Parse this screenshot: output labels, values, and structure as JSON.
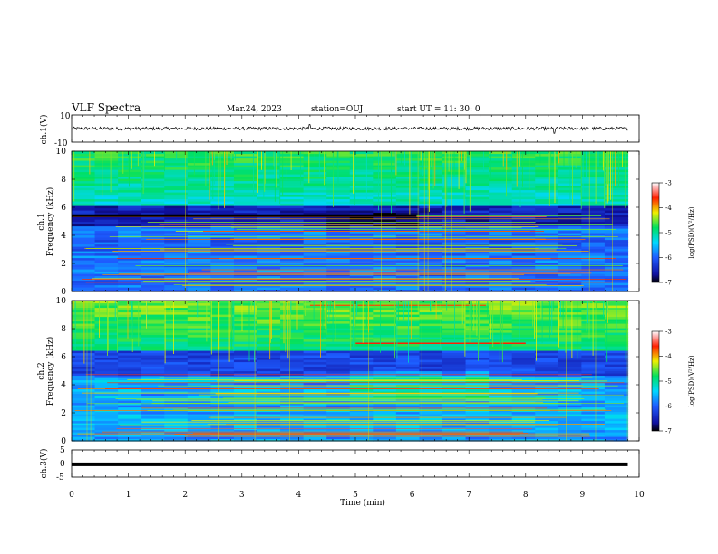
{
  "header": {
    "title": "VLF Spectra",
    "date": "Mar.24, 2023",
    "station": "station=OUJ",
    "start": "start UT =  11: 30: 0"
  },
  "chart_data": [
    {
      "type": "line",
      "name": "ch1-waveform",
      "ylabel": "ch.1(V)",
      "ylim": [
        -10,
        10
      ],
      "yticks": [
        "10",
        "-10"
      ],
      "baseline": 0,
      "noise_amplitude": 1.2,
      "spikes": [
        {
          "x": 4.2,
          "y": 3.0
        },
        {
          "x": 8.5,
          "y": -3.5
        }
      ],
      "xlim": [
        0,
        10
      ],
      "grid": false
    },
    {
      "type": "heatmap",
      "name": "ch1-spectrogram",
      "ylabel_top": "ch.1",
      "ylabel": "Frequency (kHz)",
      "xlim": [
        0,
        10
      ],
      "ylim": [
        0,
        10
      ],
      "yticks": [
        "0",
        "2",
        "4",
        "6",
        "8",
        "10"
      ],
      "data_extent_x": [
        0,
        9.8
      ],
      "colorbar": {
        "label": "log(PSD)(V²/Hz)",
        "range": [
          -7,
          -3
        ],
        "ticks": [
          "-3",
          "-4",
          "-5",
          "-6",
          "-7"
        ]
      },
      "features": "green/cyan above 6 kHz with vertical spikes; dark blue band 4.5-5.8 kHz; many horizontal tonal lines in yellow/red below 5 kHz"
    },
    {
      "type": "heatmap",
      "name": "ch2-spectrogram",
      "ylabel_top": "ch.2",
      "ylabel": "Frequency (kHz)",
      "xlim": [
        0,
        10
      ],
      "ylim": [
        0,
        10
      ],
      "yticks": [
        "0",
        "2",
        "4",
        "6",
        "8",
        "10"
      ],
      "data_extent_x": [
        0,
        9.8
      ],
      "colorbar": {
        "label": "log(PSD)(V²/Hz)",
        "range": [
          -7,
          -3
        ],
        "ticks": [
          "-3",
          "-4",
          "-5",
          "-6",
          "-7"
        ]
      },
      "features": "green/yellow above 6 kHz with red band 6.5-7 kHz after 5 min; dark band 4.5-5.5 kHz; tonal lines below 4.5 kHz"
    },
    {
      "type": "line",
      "name": "ch3-waveform",
      "ylabel": "ch.3(V)",
      "ylim": [
        -5,
        5
      ],
      "yticks": [
        "5",
        "0",
        "-5"
      ],
      "baseline": -0.3,
      "xlim": [
        0,
        10
      ],
      "xticks": [
        "0",
        "1",
        "2",
        "3",
        "4",
        "5",
        "6",
        "7",
        "8",
        "9",
        "10"
      ],
      "xlabel": "Time (min)",
      "grid": false
    }
  ]
}
